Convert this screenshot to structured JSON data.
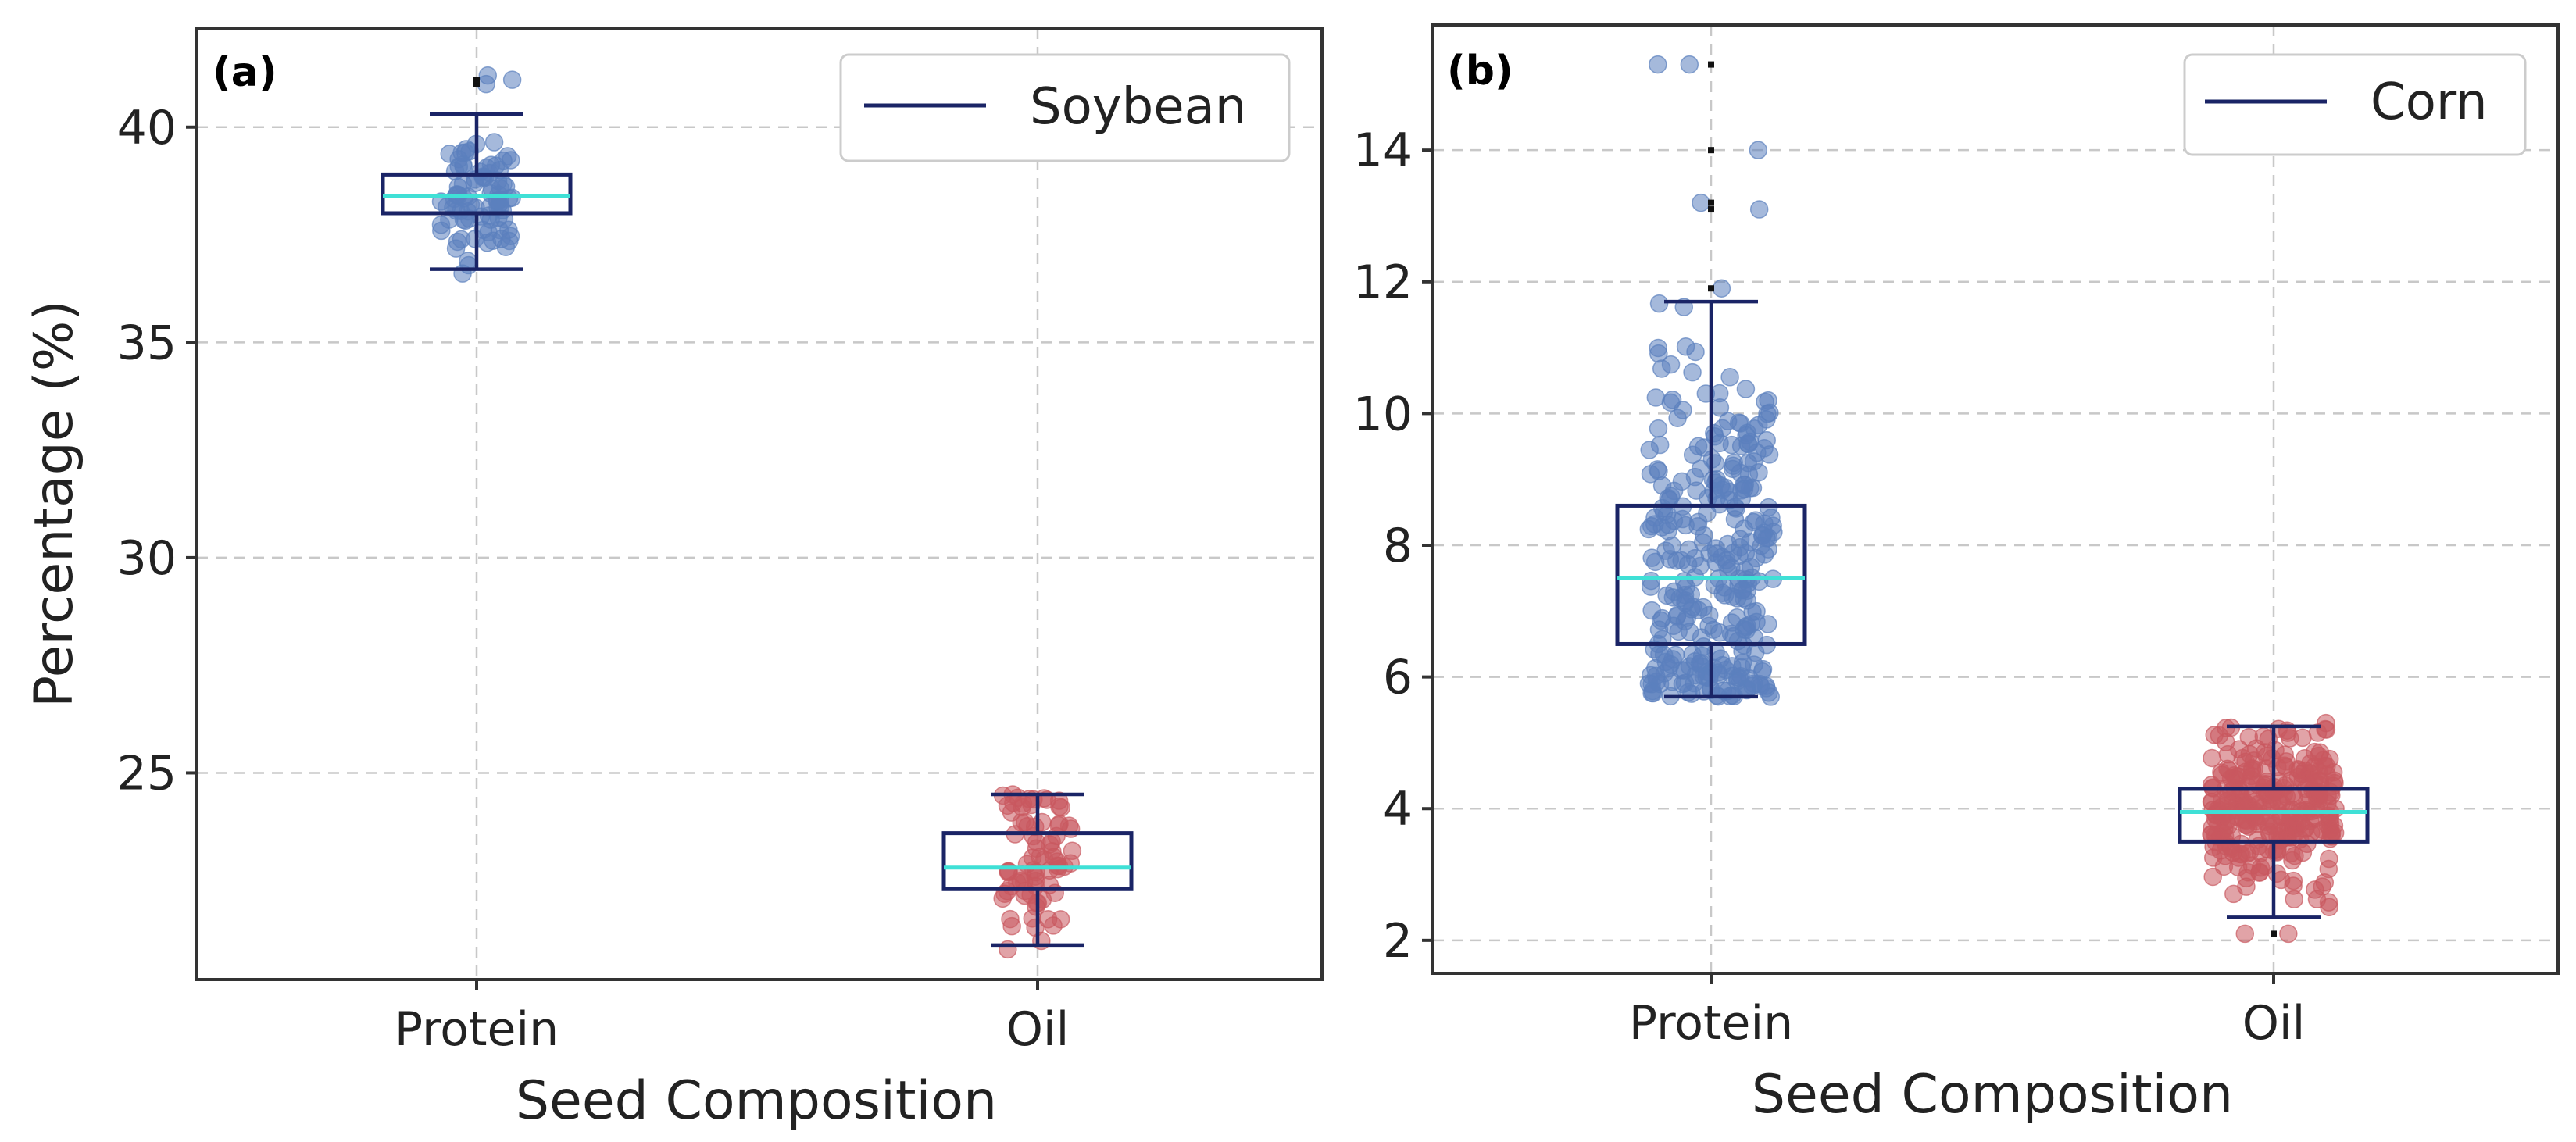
{
  "colors": {
    "protein_points": "#5b80bd",
    "oil_points": "#c9585f",
    "box": "#1a2466",
    "median": "#3fe0d6",
    "outlier": "#111111"
  },
  "chart_data": [
    {
      "type": "box",
      "panel_label": "(a)",
      "legend": "Soybean",
      "legend_position": "top-right",
      "xlabel": "Seed Composition",
      "ylabel": "Percentage (%)",
      "categories": [
        "Protein",
        "Oil"
      ],
      "ylim": [
        20.2,
        42.3
      ],
      "yticks": [
        25,
        30,
        35,
        40
      ],
      "grid": true,
      "boxes": [
        {
          "name": "Protein",
          "q1": 38.0,
          "median": 38.4,
          "q3": 38.9,
          "whisker_low": 36.7,
          "whisker_high": 40.3,
          "outliers": [
            41.0,
            41.1
          ],
          "n_points": 90,
          "min": 36.6,
          "max": 41.2
        },
        {
          "name": "Oil",
          "q1": 22.3,
          "median": 22.8,
          "q3": 23.6,
          "whisker_low": 21.0,
          "whisker_high": 24.5,
          "outliers": [],
          "n_points": 80,
          "min": 20.9,
          "max": 24.5
        }
      ]
    },
    {
      "type": "box",
      "panel_label": "(b)",
      "legend": "Corn",
      "legend_position": "top-right",
      "xlabel": "Seed Composition",
      "ylabel": "",
      "categories": [
        "Protein",
        "Oil"
      ],
      "ylim": [
        1.5,
        15.9
      ],
      "yticks": [
        2,
        4,
        6,
        8,
        10,
        12,
        14
      ],
      "grid": true,
      "boxes": [
        {
          "name": "Protein",
          "q1": 6.5,
          "median": 7.5,
          "q3": 8.6,
          "whisker_low": 5.7,
          "whisker_high": 11.7,
          "outliers": [
            11.9,
            13.1,
            13.2,
            14.0,
            15.3
          ],
          "n_points": 320,
          "min": 5.7,
          "max": 15.3
        },
        {
          "name": "Oil",
          "q1": 3.5,
          "median": 3.95,
          "q3": 4.3,
          "whisker_low": 2.35,
          "whisker_high": 5.25,
          "outliers": [
            2.1
          ],
          "n_points": 300,
          "min": 2.1,
          "max": 5.3
        }
      ]
    }
  ]
}
